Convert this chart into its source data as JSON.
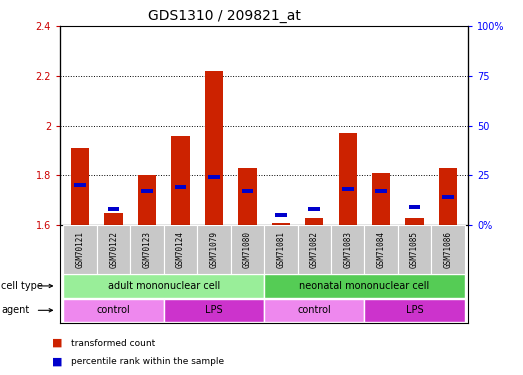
{
  "title": "GDS1310 / 209821_at",
  "samples": [
    "GSM70121",
    "GSM70122",
    "GSM70123",
    "GSM70124",
    "GSM71079",
    "GSM71080",
    "GSM71081",
    "GSM71082",
    "GSM71083",
    "GSM71084",
    "GSM71085",
    "GSM71086"
  ],
  "red_values": [
    1.91,
    1.65,
    1.8,
    1.96,
    2.22,
    1.83,
    1.61,
    1.63,
    1.97,
    1.81,
    1.63,
    1.83
  ],
  "blue_values_pct": [
    20,
    8,
    17,
    19,
    24,
    17,
    5,
    8,
    18,
    17,
    9,
    14
  ],
  "ylim_left": [
    1.6,
    2.4
  ],
  "ylim_right": [
    0,
    100
  ],
  "yticks_left": [
    1.6,
    1.8,
    2.0,
    2.2,
    2.4
  ],
  "ytick_labels_left": [
    "1.6",
    "1.8",
    "2",
    "2.2",
    "2.4"
  ],
  "ytick_labels_right": [
    "0%",
    "25",
    "50",
    "75",
    "100%"
  ],
  "bar_base": 1.6,
  "cell_type_groups": [
    {
      "label": "adult mononuclear cell",
      "start": 0,
      "end": 6,
      "color": "#99EE99"
    },
    {
      "label": "neonatal mononuclear cell",
      "start": 6,
      "end": 12,
      "color": "#55CC55"
    }
  ],
  "agent_groups": [
    {
      "label": "control",
      "start": 0,
      "end": 3,
      "color": "#EE88EE"
    },
    {
      "label": "LPS",
      "start": 3,
      "end": 6,
      "color": "#CC33CC"
    },
    {
      "label": "control",
      "start": 6,
      "end": 9,
      "color": "#EE88EE"
    },
    {
      "label": "LPS",
      "start": 9,
      "end": 12,
      "color": "#CC33CC"
    }
  ],
  "red_color": "#CC2200",
  "blue_color": "#0000CC",
  "bar_width": 0.55,
  "blue_bar_width": 0.35,
  "grid_color": "#000000",
  "sample_bg_color": "#C8C8C8",
  "left_tick_color": "#CC0000",
  "right_tick_color": "#0000FF",
  "legend_red": "transformed count",
  "legend_blue": "percentile rank within the sample",
  "cell_type_label": "cell type",
  "agent_label": "agent",
  "title_fontsize": 10,
  "tick_fontsize": 7,
  "label_fontsize": 7,
  "sample_fontsize": 5.5
}
